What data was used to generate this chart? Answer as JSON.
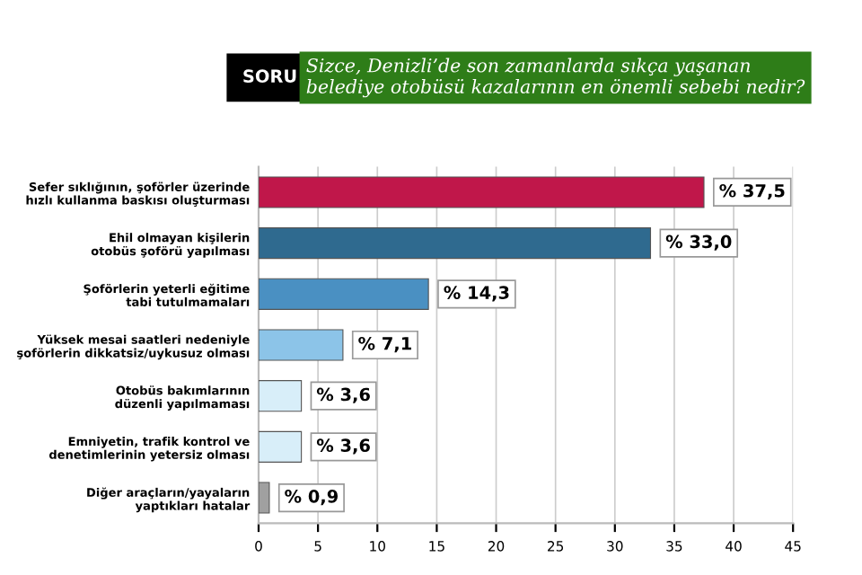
{
  "chart_data": {
    "type": "bar",
    "orientation": "horizontal",
    "title": "Sizce, Denizli’de son zamanlarda sıkça yaşanan\nbelediye otobüsü kazalarının en önemli sebebi nedir?",
    "annotations": [
      "SORU"
    ],
    "categories": [
      "Sefer sıklığının, şoförler üzerinde\nhızlı kullanma baskısı oluşturması",
      "Ehil olmayan kişilerin\notobüs şoförü yapılması",
      "Şoförlerin yeterli eğitime\ntabi tutulmamaları",
      "Yüksek mesai saatleri nedeniyle\nşoförlerin dikkatsiz/uykusuz olması",
      "Otobüs bakımlarının\ndüzenli yapılmaması",
      "Emniyetin, trafik kontrol ve\ndenetimlerinin yetersiz olması",
      "Diğer araçların/yayaların\nyaptıkları hatalar"
    ],
    "values": [
      37.5,
      33.0,
      14.3,
      7.1,
      3.6,
      3.6,
      0.9
    ],
    "value_labels": [
      "% 37,5",
      "% 33,0",
      "% 14,3",
      "% 7,1",
      "% 3,6",
      "% 3,6",
      "% 0,9"
    ],
    "colors": [
      "#c0174a",
      "#2f6a8f",
      "#4a90c2",
      "#8cc4e8",
      "#d8eef9",
      "#d8eef9",
      "#a0a0a0"
    ],
    "xlim": [
      0,
      45
    ],
    "xticks": [
      0,
      5,
      10,
      15,
      20,
      25,
      30,
      35,
      40,
      45
    ],
    "grid": "x",
    "legend": false
  }
}
